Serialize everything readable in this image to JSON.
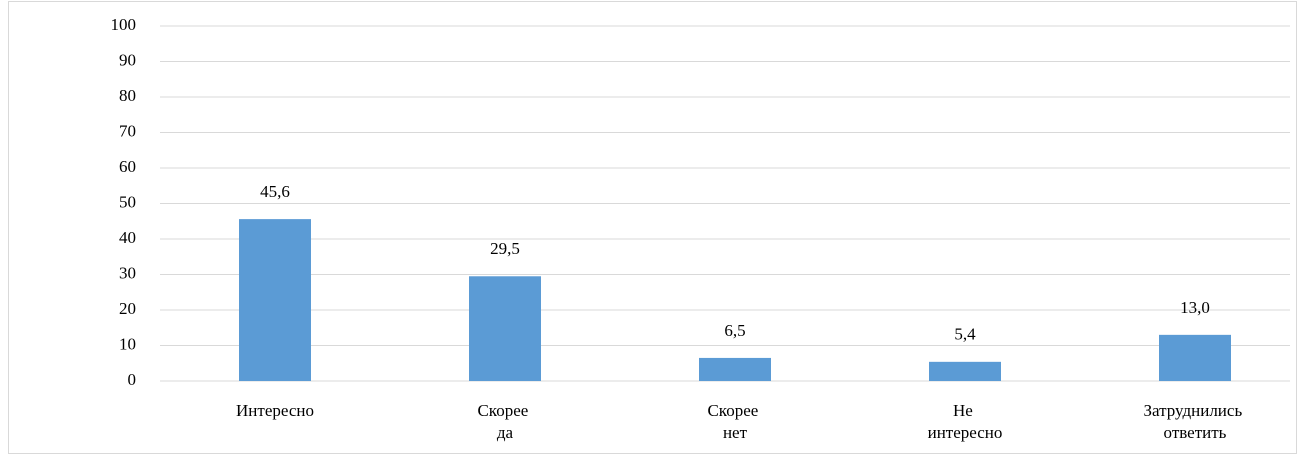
{
  "chart_data": {
    "type": "bar",
    "categories": [
      "Интересно",
      "Скорее да",
      "Скорее нет",
      "Не интересно",
      "Затруднились ответить"
    ],
    "values": [
      45.6,
      29.5,
      6.5,
      5.4,
      13.0
    ],
    "value_labels": [
      "45,6",
      "29,5",
      "6,5",
      "5,4",
      "13,0"
    ],
    "color": "#5b9bd5",
    "ylim": [
      0,
      100
    ],
    "yticks": [
      0,
      10,
      20,
      30,
      40,
      50,
      60,
      70,
      80,
      90,
      100
    ],
    "grid": true
  }
}
